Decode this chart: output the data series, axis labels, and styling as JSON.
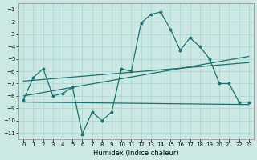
{
  "xlabel": "Humidex (Indice chaleur)",
  "bg_color": "#cce8e4",
  "grid_color": "#a8d4d0",
  "line_color": "#1e7070",
  "xlim": [
    -0.5,
    23.5
  ],
  "ylim": [
    -11.5,
    -0.5
  ],
  "xticks": [
    0,
    1,
    2,
    3,
    4,
    5,
    6,
    7,
    8,
    9,
    10,
    11,
    12,
    13,
    14,
    15,
    16,
    17,
    18,
    19,
    20,
    21,
    22,
    23
  ],
  "yticks": [
    -11,
    -10,
    -9,
    -8,
    -7,
    -6,
    -5,
    -4,
    -3,
    -2,
    -1
  ],
  "main_x": [
    0,
    1,
    2,
    3,
    4,
    5,
    6,
    7,
    8,
    9,
    10,
    11,
    12,
    13,
    14,
    15,
    16,
    17,
    18,
    19,
    20,
    21,
    22,
    23
  ],
  "main_y": [
    -8.3,
    -6.5,
    -5.8,
    -8.0,
    -7.8,
    -7.3,
    -11.1,
    -9.3,
    -10.0,
    -9.3,
    -5.8,
    -6.0,
    -2.1,
    -1.4,
    -1.2,
    -2.6,
    -4.3,
    -3.3,
    -4.0,
    -5.0,
    -7.0,
    -7.0,
    -8.5,
    -8.5
  ],
  "trend1_x": [
    0,
    23
  ],
  "trend1_y": [
    -8.0,
    -4.8
  ],
  "trend2_x": [
    0,
    23
  ],
  "trend2_y": [
    -6.8,
    -5.3
  ],
  "trend3_x": [
    0,
    23
  ],
  "trend3_y": [
    -8.5,
    -8.7
  ]
}
